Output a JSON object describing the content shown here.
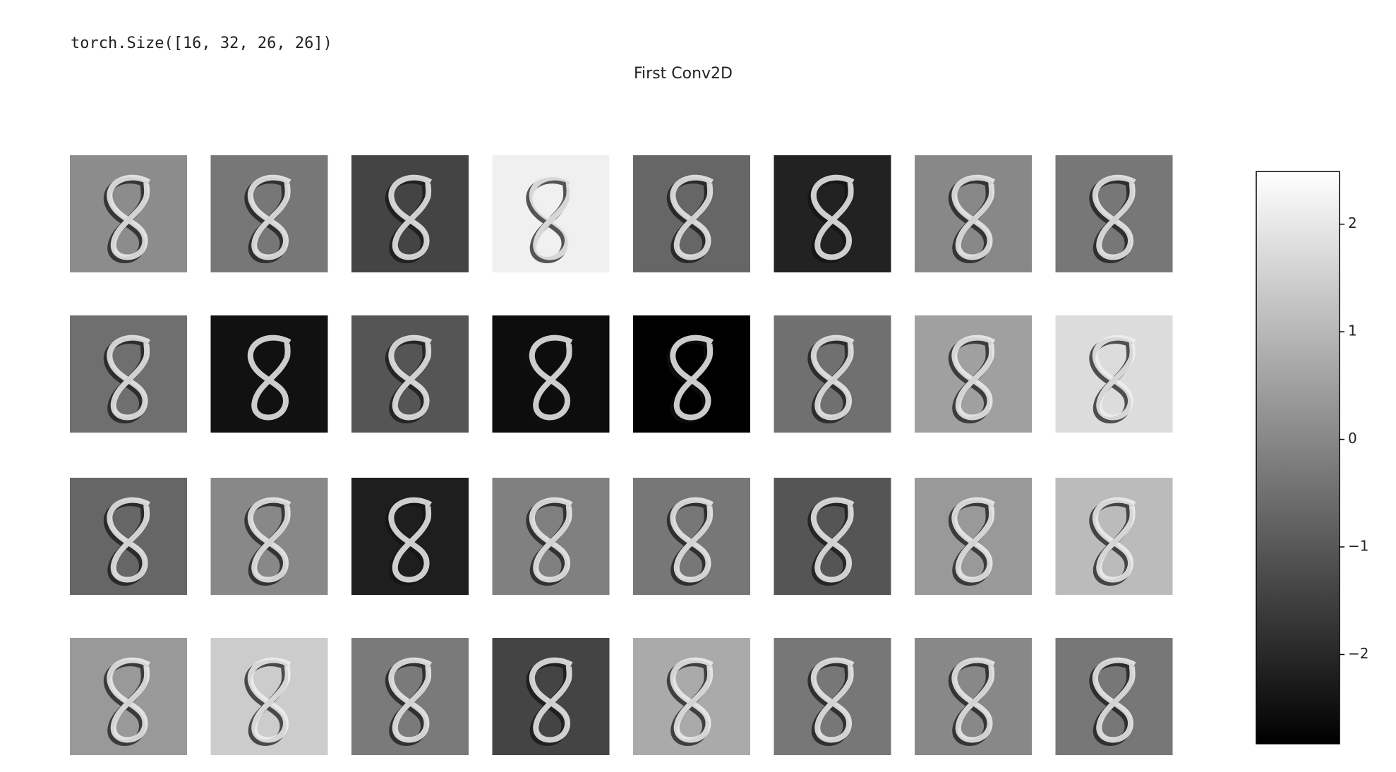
{
  "output": "torch.Size([16, 32, 26, 26])",
  "chart_data": {
    "type": "image_grid",
    "title": "First Conv2D",
    "panels": [
      [
        0.1,
        -0.35,
        -1.41,
        2.18,
        -0.7,
        -2.12,
        0.01,
        -0.35
      ],
      [
        -0.52,
        -2.48,
        -1.06,
        -2.56,
        -2.83,
        -0.49,
        0.51,
        1.76
      ],
      [
        -0.7,
        0.01,
        -2.2,
        -0.16,
        -0.35,
        -1.06,
        0.36,
        1.07
      ],
      [
        0.36,
        1.43,
        -0.28,
        -1.41,
        0.72,
        -0.35,
        0.01,
        -0.35
      ]
    ],
    "clim": [
      -2.83,
      2.49
    ],
    "cticks": [
      {
        "value": -2,
        "label": "−2"
      },
      {
        "value": -1,
        "label": "−1"
      },
      0,
      1,
      2
    ],
    "cmap": "gray"
  }
}
